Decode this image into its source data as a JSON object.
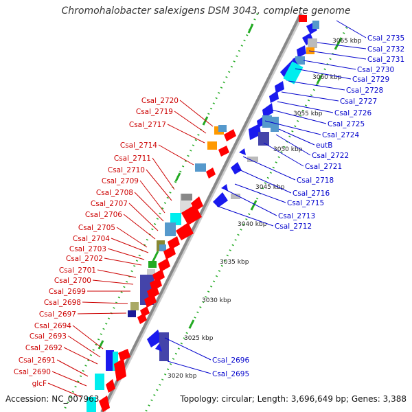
{
  "title": "Chromohalobacter salexigens DSM 3043, complete genome",
  "footer": {
    "accession": "Accession: NC_007963",
    "stats": "Topology: circular; Length: 3,696,649 bp; Genes: 3,388"
  },
  "scale_labels": [
    "3065 kbp",
    "3060 kbp",
    "3055 kbp",
    "3050 kbp",
    "3045 kbp",
    "3040 kbp",
    "3035 kbp",
    "3030 kbp",
    "3025 kbp",
    "3020 kbp"
  ],
  "right_labels": [
    "Csal_2735",
    "Csal_2732",
    "Csal_2731",
    "Csal_2730",
    "Csal_2729",
    "Csal_2728",
    "Csal_2727",
    "Csal_2726",
    "Csal_2725",
    "Csal_2724",
    "eutB",
    "Csal_2722",
    "Csal_2721",
    "Csal_2718",
    "Csal_2716",
    "Csal_2715",
    "Csal_2713",
    "Csal_2712",
    "Csal_2696",
    "Csal_2695"
  ],
  "left_labels": [
    "Csal_2720",
    "Csal_2719",
    "Csal_2717",
    "Csal_2714",
    "Csal_2711",
    "Csal_2710",
    "Csal_2709",
    "Csal_2708",
    "Csal_2707",
    "Csal_2706",
    "Csal_2705",
    "Csal_2704",
    "Csal_2703",
    "Csal_2702",
    "Csal_2701",
    "Csal_2700",
    "Csal_2699",
    "Csal_2698",
    "Csal_2697",
    "Csal_2694",
    "Csal_2693",
    "Csal_2692",
    "Csal_2691",
    "Csal_2690",
    "glcF"
  ],
  "colors": {
    "forward": "#ff0000",
    "reverse": "#1a1aee",
    "right_label": "#0000cc",
    "left_label": "#cc0000",
    "backbone": "#888888",
    "gc_ticks": "#22aa22"
  }
}
